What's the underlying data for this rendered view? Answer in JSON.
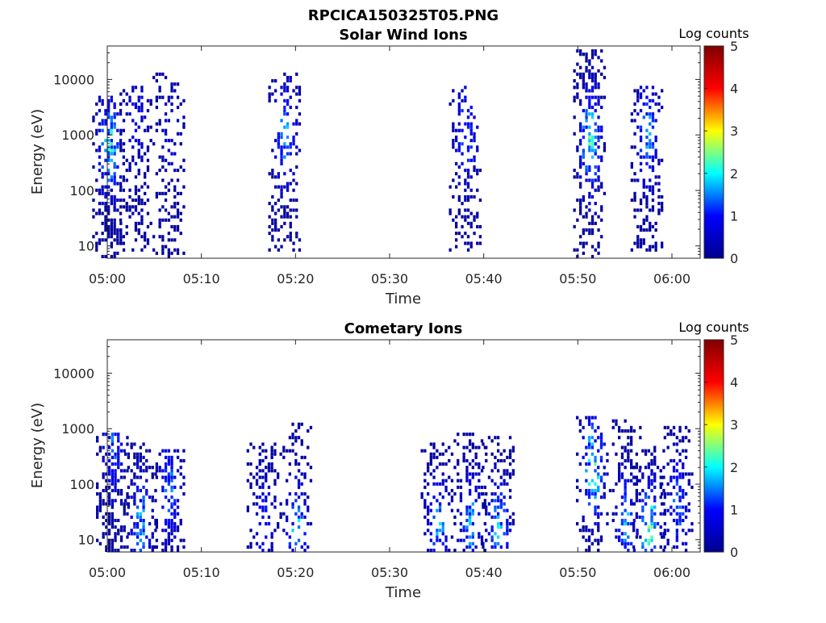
{
  "figure": {
    "title": "RPCICA150325T05.PNG"
  },
  "colormap": {
    "stops": [
      "#00008f",
      "#0000ff",
      "#00ffff",
      "#ffff00",
      "#ff0000",
      "#800000"
    ],
    "blank": "#ffffff"
  },
  "chart_data": [
    {
      "type": "heatmap",
      "title": "Solar Wind Ions",
      "xlabel": "Time",
      "ylabel": "Energy (eV)",
      "y_scale": "log",
      "xlim": [
        "05:00",
        "06:03"
      ],
      "ylim": [
        6,
        40000
      ],
      "x_ticks": [
        "05:00",
        "05:10",
        "05:20",
        "05:30",
        "05:40",
        "05:50",
        "06:00"
      ],
      "y_ticks": [
        10,
        100,
        1000,
        10000
      ],
      "y_tick_labels": [
        "10",
        "100",
        "1000",
        "10000"
      ],
      "colorbar": {
        "label": "Log counts",
        "range": [
          0,
          5
        ],
        "ticks": [
          "0",
          "1",
          "2",
          "3",
          "4",
          "5"
        ]
      },
      "grid": false,
      "bursts": [
        {
          "t_min": 0.1,
          "e_low": 6,
          "e_high": 5000,
          "peak_energy": 600,
          "peak_log_counts": 2.3,
          "density": 0.55
        },
        {
          "t_min": 3.0,
          "e_low": 8,
          "e_high": 8000,
          "peak_energy": 2000,
          "peak_log_counts": 1.0,
          "density": 0.35
        },
        {
          "t_min": 6.5,
          "e_low": 6,
          "e_high": 14000,
          "peak_energy": 900,
          "peak_log_counts": 0.8,
          "density": 0.3
        },
        {
          "t_min": 18.8,
          "e_low": 8,
          "e_high": 14000,
          "peak_energy": 1000,
          "peak_log_counts": 1.8,
          "density": 0.4
        },
        {
          "t_min": 38.0,
          "e_low": 8,
          "e_high": 8000,
          "peak_energy": 1000,
          "peak_log_counts": 1.6,
          "density": 0.35
        },
        {
          "t_min": 51.2,
          "e_low": 6,
          "e_high": 35000,
          "peak_energy": 800,
          "peak_log_counts": 2.4,
          "density": 0.4
        },
        {
          "t_min": 57.3,
          "e_low": 8,
          "e_high": 8000,
          "peak_energy": 1000,
          "peak_log_counts": 1.9,
          "density": 0.4
        }
      ]
    },
    {
      "type": "heatmap",
      "title": "Cometary Ions",
      "xlabel": "Time",
      "ylabel": "Energy (eV)",
      "y_scale": "log",
      "xlim": [
        "05:00",
        "06:03"
      ],
      "ylim": [
        6,
        40000
      ],
      "x_ticks": [
        "05:00",
        "05:10",
        "05:20",
        "05:30",
        "05:40",
        "05:50",
        "06:00"
      ],
      "y_ticks": [
        10,
        100,
        1000,
        10000
      ],
      "y_tick_labels": [
        "10",
        "100",
        "1000",
        "10000"
      ],
      "colorbar": {
        "label": "Log counts",
        "range": [
          0,
          5
        ],
        "ticks": [
          "0",
          "1",
          "2",
          "3",
          "4",
          "5"
        ]
      },
      "grid": false,
      "bursts": [
        {
          "t_min": 0.5,
          "e_low": 6,
          "e_high": 900,
          "peak_energy": 500,
          "peak_log_counts": 1.5,
          "density": 0.55
        },
        {
          "t_min": 3.5,
          "e_low": 6,
          "e_high": 600,
          "peak_energy": 20,
          "peak_log_counts": 1.8,
          "density": 0.4
        },
        {
          "t_min": 6.5,
          "e_low": 6,
          "e_high": 400,
          "peak_energy": 80,
          "peak_log_counts": 1.6,
          "density": 0.4
        },
        {
          "t_min": 16.5,
          "e_low": 6,
          "e_high": 600,
          "peak_energy": 20,
          "peak_log_counts": 1.2,
          "density": 0.4
        },
        {
          "t_min": 20.0,
          "e_low": 6,
          "e_high": 1200,
          "peak_energy": 15,
          "peak_log_counts": 2.0,
          "density": 0.4
        },
        {
          "t_min": 35.0,
          "e_low": 6,
          "e_high": 600,
          "peak_energy": 15,
          "peak_log_counts": 1.9,
          "density": 0.4
        },
        {
          "t_min": 38.5,
          "e_low": 6,
          "e_high": 800,
          "peak_energy": 20,
          "peak_log_counts": 1.8,
          "density": 0.4
        },
        {
          "t_min": 41.5,
          "e_low": 6,
          "e_high": 700,
          "peak_energy": 15,
          "peak_log_counts": 2.1,
          "density": 0.4
        },
        {
          "t_min": 51.5,
          "e_low": 6,
          "e_high": 1600,
          "peak_energy": 200,
          "peak_log_counts": 2.5,
          "density": 0.4
        },
        {
          "t_min": 55.0,
          "e_low": 6,
          "e_high": 1500,
          "peak_energy": 20,
          "peak_log_counts": 1.8,
          "density": 0.35
        },
        {
          "t_min": 57.5,
          "e_low": 6,
          "e_high": 500,
          "peak_energy": 15,
          "peak_log_counts": 2.5,
          "density": 0.4
        },
        {
          "t_min": 60.5,
          "e_low": 6,
          "e_high": 1100,
          "peak_energy": 40,
          "peak_log_counts": 1.6,
          "density": 0.4
        }
      ]
    }
  ]
}
